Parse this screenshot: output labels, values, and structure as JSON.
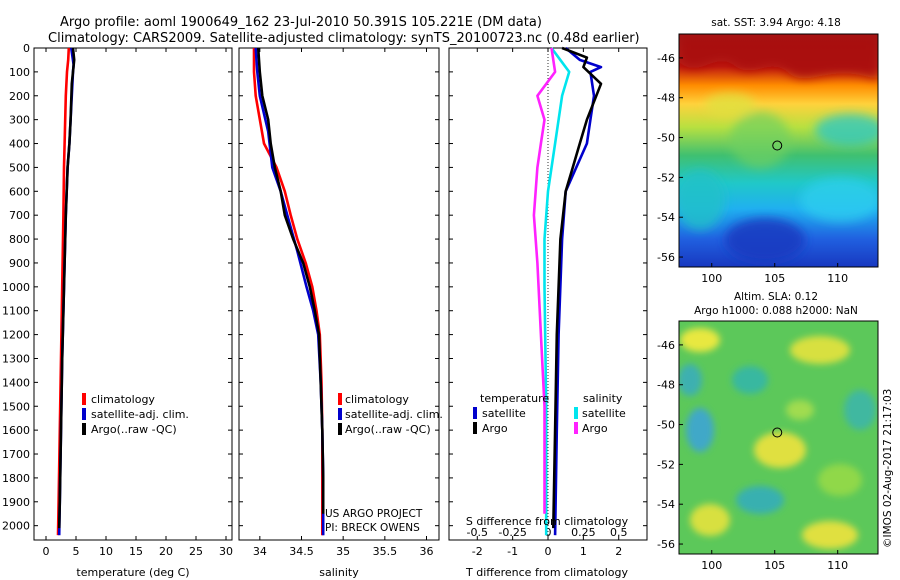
{
  "header": {
    "line1": "Argo profile: aoml 1900649_162 23-Jul-2010 50.391S 105.221E (DM data)",
    "line2": "Climatology: CARS2009. Satellite-adjusted climatology: synTS_20100723.nc (0.48d earlier)"
  },
  "credit": {
    "project": "US ARGO PROJECT",
    "pi": "PI: BRECK OWENS",
    "stamp": "©IMOS 02-Aug-2017 21:17:03"
  },
  "colors": {
    "climatology": "#ff0000",
    "satellite": "#0000cc",
    "argo": "#000000",
    "sat_salinity": "#00e5ee",
    "argo_salinity": "#ff22ff"
  },
  "chart_data": [
    {
      "type": "line",
      "id": "temperature",
      "xlabel": "temperature (deg C)",
      "ylabel": "",
      "xlim": [
        -2,
        31
      ],
      "ylim": [
        2060,
        0
      ],
      "xticks": [
        0,
        5,
        10,
        15,
        20,
        25,
        30
      ],
      "yticks": [
        0,
        100,
        200,
        300,
        400,
        500,
        600,
        700,
        800,
        900,
        1000,
        1100,
        1200,
        1300,
        1400,
        1500,
        1600,
        1700,
        1800,
        1900,
        2000
      ],
      "legend": [
        "climatology",
        "satellite-adj. clim.",
        "Argo(..raw -QC)"
      ],
      "series": [
        {
          "name": "climatology",
          "color": "#ff0000",
          "points": [
            [
              3.8,
              0
            ],
            [
              3.7,
              50
            ],
            [
              3.5,
              100
            ],
            [
              3.3,
              200
            ],
            [
              3.2,
              300
            ],
            [
              3.0,
              500
            ],
            [
              2.9,
              700
            ],
            [
              2.7,
              1000
            ],
            [
              2.5,
              1300
            ],
            [
              2.3,
              1600
            ],
            [
              2.1,
              1900
            ],
            [
              2.0,
              2040
            ]
          ]
        },
        {
          "name": "satellite-adj. clim.",
          "color": "#0000cc",
          "points": [
            [
              4.2,
              0
            ],
            [
              4.6,
              70
            ],
            [
              4.5,
              100
            ],
            [
              4.2,
              250
            ],
            [
              3.9,
              400
            ],
            [
              3.6,
              500
            ],
            [
              3.3,
              700
            ],
            [
              3.0,
              1000
            ],
            [
              2.7,
              1300
            ],
            [
              2.5,
              1600
            ],
            [
              2.3,
              1900
            ],
            [
              2.2,
              2040
            ]
          ]
        },
        {
          "name": "Argo(..raw -QC)",
          "color": "#000000",
          "points": [
            [
              4.5,
              0
            ],
            [
              4.7,
              50
            ],
            [
              4.3,
              150
            ],
            [
              4.1,
              300
            ],
            [
              3.9,
              400
            ],
            [
              3.6,
              500
            ],
            [
              3.3,
              700
            ],
            [
              3.0,
              1000
            ],
            [
              2.7,
              1300
            ],
            [
              2.5,
              1600
            ],
            [
              2.3,
              1900
            ],
            [
              2.2,
              2010
            ]
          ]
        }
      ]
    },
    {
      "type": "line",
      "id": "salinity",
      "xlabel": "salinity",
      "xlim": [
        33.75,
        36.15
      ],
      "ylim": [
        2060,
        0
      ],
      "xticks": [
        34,
        34.5,
        35,
        35.5,
        36
      ],
      "legend": [
        "climatology",
        "satellite-adj. clim.",
        "Argo(..raw -QC)"
      ],
      "series": [
        {
          "name": "climatology",
          "color": "#ff0000",
          "points": [
            [
              33.93,
              0
            ],
            [
              33.93,
              100
            ],
            [
              33.95,
              200
            ],
            [
              34.05,
              400
            ],
            [
              34.2,
              500
            ],
            [
              34.3,
              600
            ],
            [
              34.37,
              700
            ],
            [
              34.45,
              800
            ],
            [
              34.55,
              900
            ],
            [
              34.63,
              1000
            ],
            [
              34.68,
              1100
            ],
            [
              34.72,
              1200
            ],
            [
              34.74,
              1400
            ],
            [
              34.75,
              1600
            ],
            [
              34.75,
              2040
            ]
          ]
        },
        {
          "name": "satellite-adj. clim.",
          "color": "#0000cc",
          "points": [
            [
              33.95,
              0
            ],
            [
              33.97,
              100
            ],
            [
              34.0,
              200
            ],
            [
              34.1,
              350
            ],
            [
              34.15,
              500
            ],
            [
              34.25,
              600
            ],
            [
              34.33,
              700
            ],
            [
              34.45,
              850
            ],
            [
              34.56,
              1000
            ],
            [
              34.64,
              1100
            ],
            [
              34.7,
              1200
            ],
            [
              34.73,
              1400
            ],
            [
              34.75,
              1600
            ],
            [
              34.76,
              1800
            ],
            [
              34.76,
              2040
            ]
          ]
        },
        {
          "name": "Argo(..raw -QC)",
          "color": "#000000",
          "points": [
            [
              33.98,
              0
            ],
            [
              34.0,
              100
            ],
            [
              34.03,
              200
            ],
            [
              34.1,
              300
            ],
            [
              34.13,
              400
            ],
            [
              34.18,
              500
            ],
            [
              34.25,
              600
            ],
            [
              34.3,
              700
            ],
            [
              34.4,
              800
            ],
            [
              34.52,
              900
            ],
            [
              34.6,
              1000
            ],
            [
              34.66,
              1100
            ],
            [
              34.71,
              1200
            ],
            [
              34.73,
              1400
            ],
            [
              34.75,
              1600
            ],
            [
              34.76,
              1800
            ],
            [
              34.76,
              1950
            ]
          ]
        }
      ]
    },
    {
      "type": "line",
      "id": "differences",
      "xlabel": "T difference from climatology",
      "xlabel_top": "S difference from climatology",
      "xlim": [
        -2.8,
        2.8
      ],
      "ylim": [
        2060,
        0
      ],
      "xticks": [
        -2,
        -1,
        0,
        1,
        2
      ],
      "xticks_s": [
        "-0.5",
        "-0.25",
        "0",
        "0.25",
        "0.5"
      ],
      "legend_temperature_title": "temperature",
      "legend_salinity_title": "salinity",
      "legend_entries": {
        "sat_t": "satellite",
        "argo_t": "Argo",
        "sat_s": "satellite",
        "argo_s": "Argo"
      },
      "series": [
        {
          "name": "temperature satellite",
          "color": "#0000cc",
          "points": [
            [
              0.5,
              0
            ],
            [
              0.9,
              50
            ],
            [
              1.5,
              80
            ],
            [
              1.2,
              100
            ],
            [
              1.3,
              200
            ],
            [
              1.2,
              300
            ],
            [
              1.1,
              400
            ],
            [
              0.8,
              500
            ],
            [
              0.5,
              600
            ],
            [
              0.4,
              800
            ],
            [
              0.3,
              1200
            ],
            [
              0.25,
              1600
            ],
            [
              0.2,
              2040
            ]
          ]
        },
        {
          "name": "temperature Argo",
          "color": "#000000",
          "points": [
            [
              0.4,
              0
            ],
            [
              1.1,
              40
            ],
            [
              1.0,
              80
            ],
            [
              1.5,
              150
            ],
            [
              1.1,
              300
            ],
            [
              0.9,
              400
            ],
            [
              0.7,
              500
            ],
            [
              0.5,
              600
            ],
            [
              0.35,
              800
            ],
            [
              0.25,
              1200
            ],
            [
              0.2,
              1600
            ],
            [
              0.15,
              2010
            ]
          ]
        },
        {
          "name": "salinity satellite",
          "color": "#00e5ee",
          "points": [
            [
              0.1,
              0
            ],
            [
              0.4,
              60
            ],
            [
              0.6,
              100
            ],
            [
              0.4,
              200
            ],
            [
              0.2,
              400
            ],
            [
              0.0,
              600
            ],
            [
              -0.1,
              800
            ],
            [
              -0.1,
              1000
            ],
            [
              -0.05,
              1500
            ],
            [
              -0.05,
              2040
            ]
          ]
        },
        {
          "name": "salinity Argo",
          "color": "#ff22ff",
          "points": [
            [
              0.1,
              0
            ],
            [
              0.2,
              100
            ],
            [
              -0.3,
              200
            ],
            [
              -0.1,
              300
            ],
            [
              -0.2,
              400
            ],
            [
              -0.3,
              500
            ],
            [
              -0.4,
              700
            ],
            [
              -0.3,
              900
            ],
            [
              -0.2,
              1200
            ],
            [
              -0.1,
              1500
            ],
            [
              -0.1,
              1950
            ]
          ]
        }
      ]
    },
    {
      "type": "heatmap",
      "id": "sst_map",
      "title": "sat. SST: 3.94  Argo: 4.18",
      "xticks": [
        100,
        105,
        110
      ],
      "yticks": [
        -46,
        -48,
        -50,
        -52,
        -54,
        -56
      ],
      "marker": {
        "lon": 105.2,
        "lat": -50.4
      }
    },
    {
      "type": "heatmap",
      "id": "sla_map",
      "title": "Altim. SLA: 0.12",
      "subtitle": "Argo h1000: 0.088 h2000: NaN",
      "xticks": [
        100,
        105,
        110
      ],
      "yticks": [
        -46,
        -48,
        -50,
        -52,
        -54,
        -56
      ],
      "marker": {
        "lon": 105.2,
        "lat": -50.4
      }
    }
  ]
}
